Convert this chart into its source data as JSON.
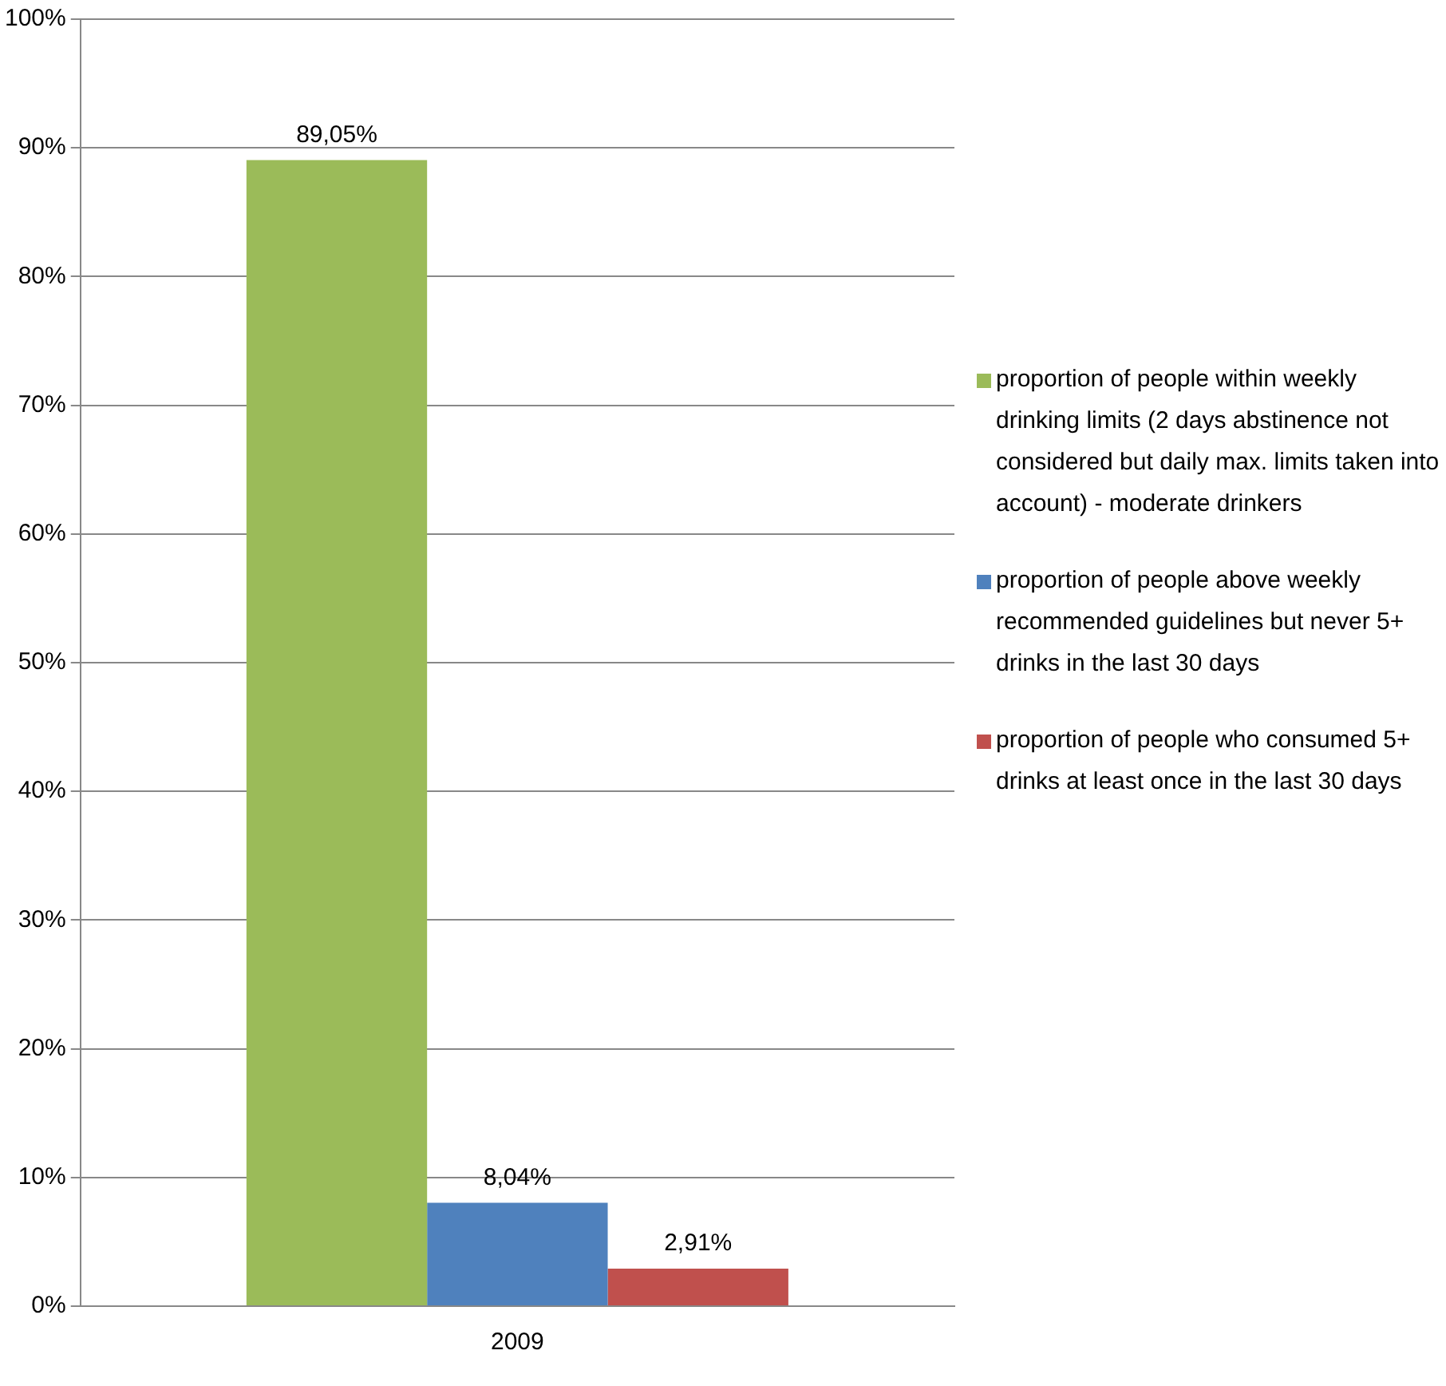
{
  "chart_data": {
    "type": "bar",
    "categories": [
      "2009"
    ],
    "series": [
      {
        "name": "proportion of people within weekly drinking limits (2 days abstinence not considered but daily max. limits taken into account) - moderate drinkers",
        "color": "#9bbb59",
        "values": [
          89.05
        ],
        "value_labels": [
          "89,05%"
        ]
      },
      {
        "name": "proportion of people above weekly recommended guidelines but never 5+ drinks in the last 30 days",
        "color": "#4f81bd",
        "values": [
          8.04
        ],
        "value_labels": [
          "8,04%"
        ]
      },
      {
        "name": "proportion of people who consumed 5+ drinks at least once in the last 30 days",
        "color": "#c0504d",
        "values": [
          2.91
        ],
        "value_labels": [
          "2,91%"
        ]
      }
    ],
    "ylim": [
      0,
      100
    ],
    "yticks": [
      {
        "value": 0,
        "label": "0%"
      },
      {
        "value": 10,
        "label": "10%"
      },
      {
        "value": 20,
        "label": "20%"
      },
      {
        "value": 30,
        "label": "30%"
      },
      {
        "value": 40,
        "label": "40%"
      },
      {
        "value": 50,
        "label": "50%"
      },
      {
        "value": 60,
        "label": "60%"
      },
      {
        "value": 70,
        "label": "70%"
      },
      {
        "value": 80,
        "label": "80%"
      },
      {
        "value": 90,
        "label": "90%"
      },
      {
        "value": 100,
        "label": "100%"
      }
    ],
    "grid": "y",
    "legend": "right"
  }
}
